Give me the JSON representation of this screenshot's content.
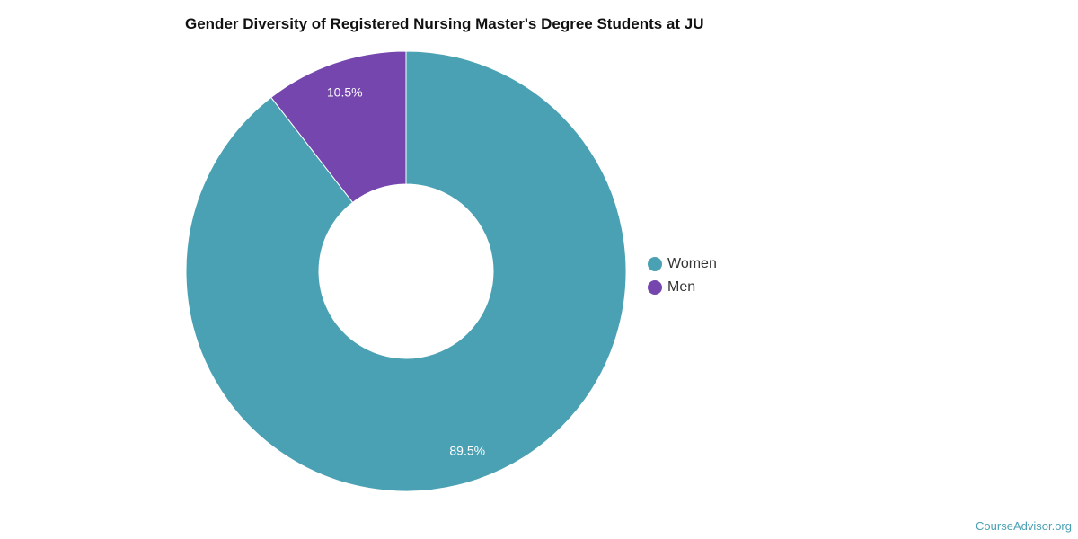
{
  "chart_data": {
    "type": "pie",
    "donut": true,
    "title": "Gender Diversity of Registered Nursing Master's Degree Students at JU",
    "slices": [
      {
        "label": "Women",
        "value": 89.5,
        "display": "89.5%",
        "color": "#4aa1b3"
      },
      {
        "label": "Men",
        "value": 10.5,
        "display": "10.5%",
        "color": "#7446ae"
      }
    ],
    "legend_position": "right"
  },
  "credit": "CourseAdvisor.org"
}
